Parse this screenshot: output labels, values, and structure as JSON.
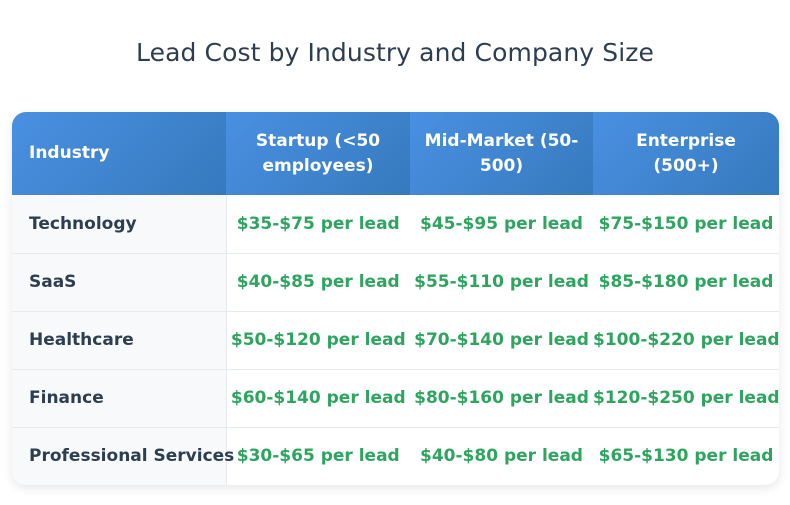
{
  "chart_data": {
    "type": "table",
    "title": "Lead Cost by Industry and Company Size",
    "columns": [
      "Industry",
      "Startup (<50 employees)",
      "Mid-Market (50-500)",
      "Enterprise (500+)"
    ],
    "rows": [
      {
        "industry": "Technology",
        "cells": [
          "$35-$75 per lead",
          "$45-$95 per lead",
          "$75-$150 per lead"
        ]
      },
      {
        "industry": "SaaS",
        "cells": [
          "$40-$85 per lead",
          "$55-$110 per lead",
          "$85-$180 per lead"
        ]
      },
      {
        "industry": "Healthcare",
        "cells": [
          "$50-$120 per lead",
          "$70-$140 per lead",
          "$100-$220 per lead"
        ]
      },
      {
        "industry": "Finance",
        "cells": [
          "$60-$140 per lead",
          "$80-$160 per lead",
          "$120-$250 per lead"
        ]
      },
      {
        "industry": "Professional Services",
        "cells": [
          "$30-$65 per lead",
          "$40-$80 per lead",
          "$65-$130 per lead"
        ]
      }
    ]
  },
  "colors": {
    "header_gradient_start": "#4a90e2",
    "header_gradient_end": "#357abd",
    "value_text": "#2ea55f",
    "label_text": "#2c3e50",
    "first_column_bg": "#f8f9fb"
  }
}
